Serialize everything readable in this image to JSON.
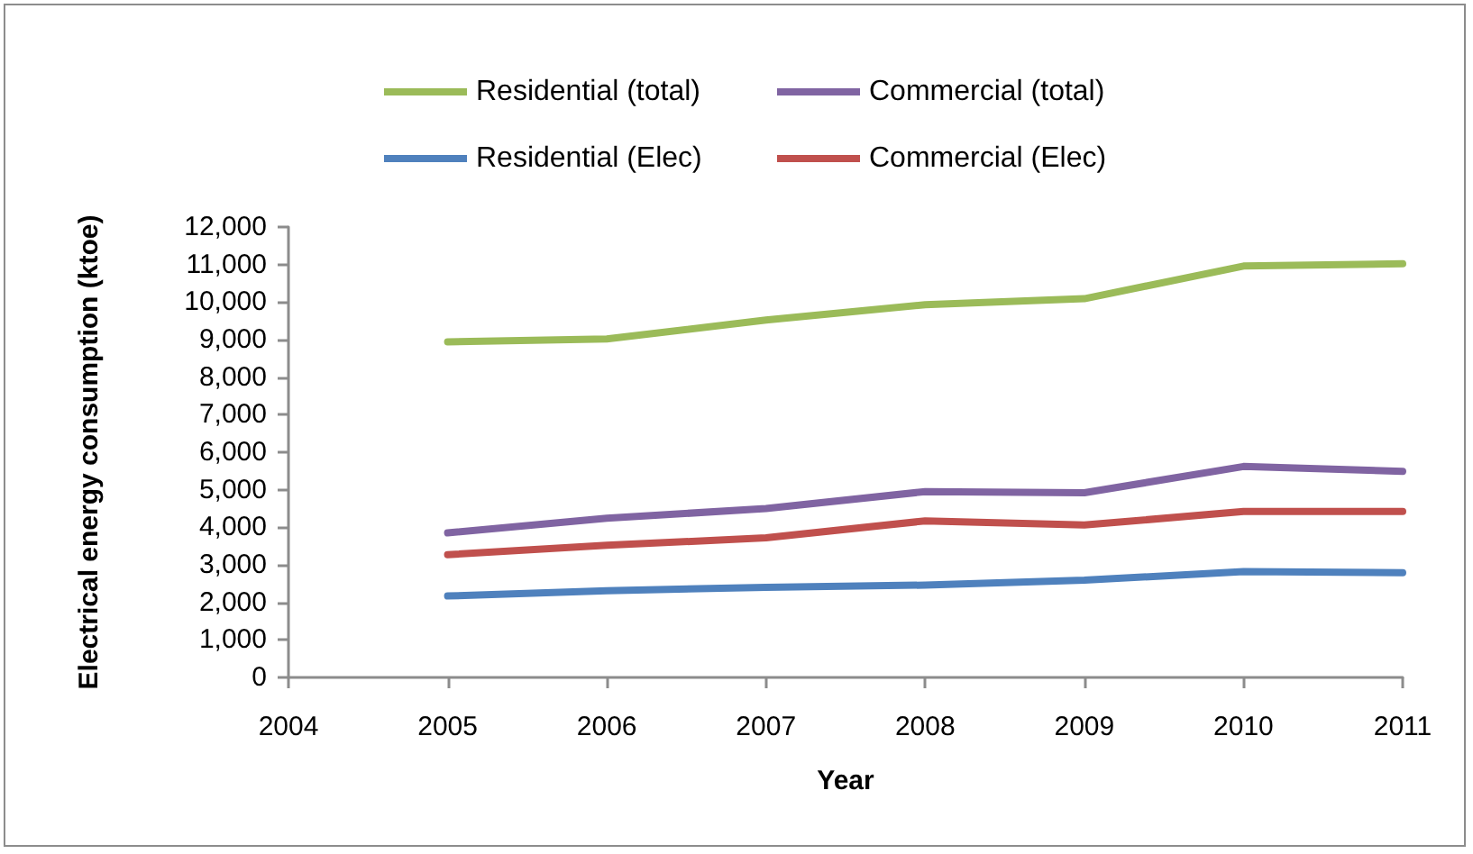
{
  "chart_data": {
    "type": "line",
    "xlabel": "Year",
    "ylabel": "Electrical energy consumption (ktoe)",
    "x": [
      2005,
      2006,
      2007,
      2008,
      2009,
      2010,
      2011
    ],
    "xlim": [
      2004,
      2011
    ],
    "xticks": [
      2004,
      2005,
      2006,
      2007,
      2008,
      2009,
      2010,
      2011
    ],
    "ylim": [
      0,
      12000
    ],
    "yticks": [
      0,
      {
        "value": 1000,
        "label": "1,000"
      },
      {
        "value": 2000,
        "label": "2,000"
      },
      {
        "value": 3000,
        "label": "3,000"
      },
      {
        "value": 4000,
        "label": "4,000"
      },
      {
        "value": 5000,
        "label": "5,000"
      },
      {
        "value": 6000,
        "label": "6,000"
      },
      {
        "value": 7000,
        "label": "7,000"
      },
      {
        "value": 8000,
        "label": "8,000"
      },
      {
        "value": 9000,
        "label": "9,000"
      },
      {
        "value": 10000,
        "label": "10,000"
      },
      {
        "value": 11000,
        "label": "11,000"
      },
      {
        "value": 12000,
        "label": "12,000"
      }
    ],
    "series": [
      {
        "name": "Residential (total)",
        "color": "#9bbb59",
        "values": [
          8940,
          9020,
          9520,
          9930,
          10090,
          10960,
          11020
        ]
      },
      {
        "name": "Commercial (total)",
        "color": "#8064a2",
        "values": [
          3850,
          4240,
          4500,
          4950,
          4920,
          5620,
          5490
        ]
      },
      {
        "name": "Residential (Elec)",
        "color": "#4f81bd",
        "values": [
          2170,
          2310,
          2400,
          2460,
          2590,
          2820,
          2790
        ]
      },
      {
        "name": "Commercial (Elec)",
        "color": "#c0504d",
        "values": [
          3270,
          3520,
          3720,
          4170,
          4060,
          4420,
          4420
        ]
      }
    ],
    "legend": "top",
    "grid": false,
    "marker": "none",
    "line_style": "solid"
  }
}
